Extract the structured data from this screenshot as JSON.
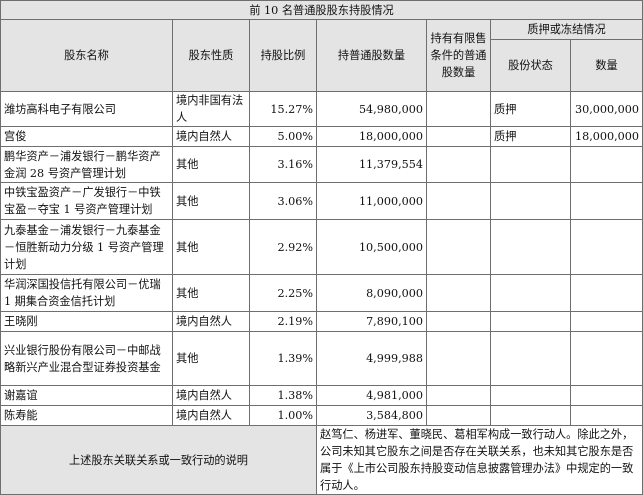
{
  "table": {
    "title": "前 10 名普通股股东持股情况",
    "headers": {
      "name": "股东名称",
      "nature": "股东性质",
      "ratio": "持股比例",
      "count": "持普通股数量",
      "restricted": "持有有限售条件的普通股数量",
      "pledge_group": "质押或冻结情况",
      "pledge_status": "股份状态",
      "pledge_count": "数量"
    },
    "rows": [
      {
        "name": "潍坊高科电子有限公司",
        "nature": "境内非国有法人",
        "ratio": "15.27%",
        "count": "54,980,000",
        "restricted": "",
        "status": "质押",
        "pledge": "30,000,000"
      },
      {
        "name": "宫俊",
        "nature": "境内自然人",
        "ratio": "5.00%",
        "count": "18,000,000",
        "restricted": "",
        "status": "质押",
        "pledge": "18,000,000"
      },
      {
        "name": "鹏华资产－浦发银行－鹏华资产金润 28 号资产管理计划",
        "nature": "其他",
        "ratio": "3.16%",
        "count": "11,379,554",
        "restricted": "",
        "status": "",
        "pledge": ""
      },
      {
        "name": "中铁宝盈资产－广发银行－中铁宝盈－夺宝 1 号资产管理计划",
        "nature": "其他",
        "ratio": "3.06%",
        "count": "11,000,000",
        "restricted": "",
        "status": "",
        "pledge": ""
      },
      {
        "name": "九泰基金－浦发银行－九泰基金－恒胜新动力分级 1 号资产管理计划",
        "nature": "其他",
        "ratio": "2.92%",
        "count": "10,500,000",
        "restricted": "",
        "status": "",
        "pledge": ""
      },
      {
        "name": "华润深国投信托有限公司－优瑞 1 期集合资金信托计划",
        "nature": "其他",
        "ratio": "2.25%",
        "count": "8,090,000",
        "restricted": "",
        "status": "",
        "pledge": ""
      },
      {
        "name": "王晓刚",
        "nature": "境内自然人",
        "ratio": "2.19%",
        "count": "7,890,100",
        "restricted": "",
        "status": "",
        "pledge": ""
      },
      {
        "name": "兴业银行股份有限公司－中邮战略新兴产业混合型证券投资基金",
        "nature": "其他",
        "ratio": "1.39%",
        "count": "4,999,988",
        "restricted": "",
        "status": "",
        "pledge": ""
      },
      {
        "name": "谢嘉谊",
        "nature": "境内自然人",
        "ratio": "1.38%",
        "count": "4,981,000",
        "restricted": "",
        "status": "",
        "pledge": ""
      },
      {
        "name": "陈寿能",
        "nature": "境内自然人",
        "ratio": "1.00%",
        "count": "3,584,800",
        "restricted": "",
        "status": "",
        "pledge": ""
      }
    ],
    "footer": {
      "label": "上述股东关联关系或一致行动的说明",
      "text": "赵笃仁、杨进军、董晓民、葛相军构成一致行动人。除此之外，公司未知其它股东之间是否存在关联关系，也未知其它股东是否属于《上市公司股东持股变动信息披露管理办法》中规定的一致行动人。"
    }
  }
}
